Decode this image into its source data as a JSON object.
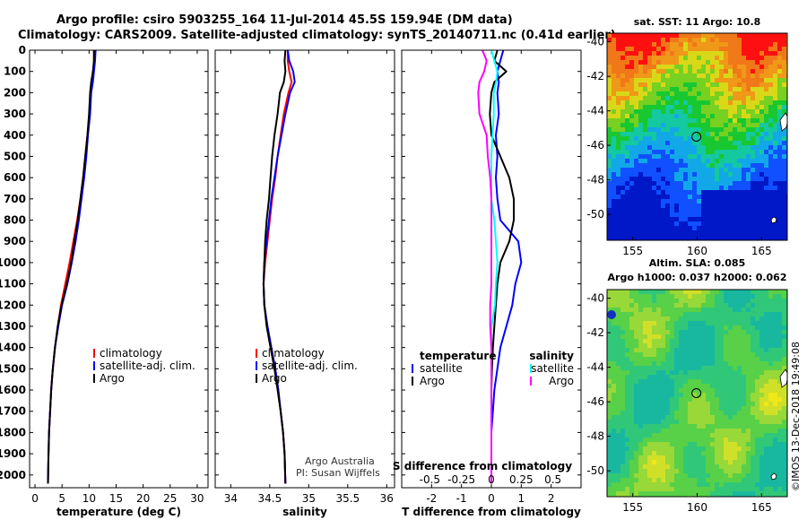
{
  "header": {
    "title_line1": "Argo profile: csiro 5903255_164 11-Jul-2014 45.5S 159.94E (DM data)",
    "title_line2": "Climatology: CARS2009. Satellite-adjusted climatology: synTS_20140711.nc (0.41d earlier)"
  },
  "credit": "Argo Australia",
  "pi": "PI: Susan Wijffels",
  "timestamp": "©IMOS 13-Dec-2018 19:49:08",
  "colors": {
    "climatology": "#ff0000",
    "satellite": "#0000ff",
    "argo": "#000000",
    "sat_salinity": "#00ffff",
    "argo_salinity": "#ff00ff"
  },
  "chart_data": [
    {
      "type": "line",
      "id": "temperature",
      "xlabel": "temperature (deg C)",
      "xlim": [
        -1,
        32
      ],
      "xticks": [
        0,
        5,
        10,
        15,
        20,
        25,
        30
      ],
      "ylim": [
        0,
        2060
      ],
      "yticks": [
        0,
        100,
        200,
        300,
        400,
        500,
        600,
        700,
        800,
        900,
        1000,
        1100,
        1200,
        1300,
        1400,
        1500,
        1600,
        1700,
        1800,
        1900,
        2000
      ],
      "legend": [
        "climatology",
        "satellite-adj. clim.",
        "Argo"
      ],
      "series": [
        {
          "name": "climatology",
          "color": "#ff0000",
          "x": [
            10.9,
            10.9,
            10.8,
            10.6,
            10.3,
            10.1,
            9.7,
            9.3,
            8.9,
            8.4,
            7.8,
            7.1,
            6.4,
            5.6,
            4.8,
            4.2,
            3.7,
            3.3,
            3.0,
            2.8,
            2.6,
            2.5,
            2.4
          ],
          "y": [
            0,
            50,
            100,
            150,
            200,
            300,
            400,
            500,
            600,
            700,
            800,
            900,
            1000,
            1100,
            1200,
            1300,
            1400,
            1500,
            1600,
            1700,
            1800,
            1900,
            2040
          ]
        },
        {
          "name": "satellite-adj. clim.",
          "color": "#0000ff",
          "x": [
            11.2,
            11.1,
            10.9,
            10.7,
            10.4,
            10.2,
            9.8,
            9.5,
            9.1,
            8.6,
            8.1,
            7.5,
            6.8,
            6.0,
            5.0,
            4.3,
            3.7,
            3.3,
            3.0,
            2.8,
            2.6,
            2.5,
            2.4
          ],
          "y": [
            0,
            50,
            100,
            150,
            200,
            300,
            400,
            500,
            600,
            700,
            800,
            900,
            1000,
            1100,
            1200,
            1300,
            1400,
            1500,
            1600,
            1700,
            1800,
            1900,
            2040
          ]
        },
        {
          "name": "Argo",
          "color": "#000000",
          "x": [
            10.9,
            10.9,
            10.7,
            10.4,
            10.2,
            10.0,
            9.7,
            9.3,
            8.9,
            8.4,
            7.9,
            7.3,
            6.7,
            5.9,
            4.9,
            4.2,
            3.7,
            3.3,
            3.0,
            2.8,
            2.6,
            2.5,
            2.4
          ],
          "y": [
            0,
            50,
            100,
            150,
            200,
            300,
            400,
            500,
            600,
            700,
            800,
            900,
            1000,
            1100,
            1200,
            1300,
            1400,
            1500,
            1600,
            1700,
            1800,
            1900,
            2040
          ]
        }
      ]
    },
    {
      "type": "line",
      "id": "salinity",
      "xlabel": "salinity",
      "xlim": [
        33.8,
        36.1
      ],
      "xticks": [
        34,
        34.5,
        35,
        35.5,
        36
      ],
      "ylim": [
        0,
        2060
      ],
      "legend": [
        "climatology",
        "satellite-adj. clim.",
        "Argo"
      ],
      "series": [
        {
          "name": "climatology",
          "color": "#ff0000",
          "x": [
            34.73,
            34.73,
            34.75,
            34.78,
            34.74,
            34.68,
            34.64,
            34.6,
            34.57,
            34.53,
            34.5,
            34.47,
            34.44,
            34.42,
            34.43,
            34.47,
            34.52,
            34.57,
            34.61,
            34.64,
            34.67,
            34.69,
            34.7
          ],
          "y": [
            0,
            50,
            100,
            150,
            200,
            300,
            400,
            500,
            600,
            700,
            800,
            900,
            1000,
            1100,
            1200,
            1300,
            1400,
            1500,
            1600,
            1700,
            1800,
            1900,
            2040
          ]
        },
        {
          "name": "satellite-adj. clim.",
          "color": "#0000ff",
          "x": [
            34.73,
            34.75,
            34.8,
            34.82,
            34.76,
            34.7,
            34.65,
            34.6,
            34.56,
            34.52,
            34.49,
            34.46,
            34.43,
            34.42,
            34.43,
            34.47,
            34.52,
            34.57,
            34.61,
            34.64,
            34.67,
            34.69,
            34.7
          ],
          "y": [
            0,
            50,
            100,
            150,
            200,
            300,
            400,
            500,
            600,
            700,
            800,
            900,
            1000,
            1100,
            1200,
            1300,
            1400,
            1500,
            1600,
            1700,
            1800,
            1900,
            2040
          ]
        },
        {
          "name": "Argo",
          "color": "#000000",
          "x": [
            34.7,
            34.69,
            34.7,
            34.68,
            34.63,
            34.6,
            34.56,
            34.53,
            34.51,
            34.49,
            34.46,
            34.44,
            34.43,
            34.42,
            34.43,
            34.46,
            34.51,
            34.56,
            34.6,
            34.64,
            34.67,
            34.69,
            34.7
          ],
          "y": [
            0,
            50,
            100,
            150,
            200,
            300,
            400,
            500,
            600,
            700,
            800,
            900,
            1000,
            1100,
            1200,
            1300,
            1400,
            1500,
            1600,
            1700,
            1800,
            1900,
            2040
          ]
        }
      ]
    },
    {
      "type": "line",
      "id": "difference",
      "xlabel": "T difference from climatology",
      "xlabel2": "S difference from climatology",
      "xlim": [
        -3,
        3
      ],
      "xticks": [
        -2,
        -1,
        0,
        1,
        2
      ],
      "xticks_labels_T": [
        "-2",
        "-1",
        "0",
        "1",
        "2"
      ],
      "xticks_s_labels": [
        "-0.5",
        "-0.25",
        "0",
        "0.25",
        "0.5"
      ],
      "xticks_s_pos": [
        -2,
        -1,
        0,
        1,
        2
      ],
      "ylim": [
        0,
        2060
      ],
      "legend_left_title": "temperature",
      "legend_right_title": "salinity",
      "legend_left": [
        "satellite",
        "Argo"
      ],
      "legend_right": [
        "satellite",
        "Argo"
      ],
      "series": [
        {
          "name": "T satellite",
          "color": "#0000ff",
          "x": [
            0.4,
            0.3,
            0.2,
            0.25,
            0.2,
            0.25,
            0.15,
            0.2,
            0.15,
            0.2,
            0.3,
            0.9,
            1.0,
            0.8,
            0.7,
            0.5,
            0.3,
            0.2,
            0.1,
            0.05,
            0.0,
            0.0,
            0.0
          ],
          "y": [
            0,
            50,
            100,
            150,
            200,
            300,
            400,
            500,
            600,
            700,
            800,
            900,
            1000,
            1100,
            1200,
            1300,
            1400,
            1500,
            1600,
            1700,
            1800,
            1900,
            2040
          ]
        },
        {
          "name": "T Argo",
          "color": "#000000",
          "x": [
            0.2,
            0.1,
            0.5,
            0.1,
            0.0,
            -0.05,
            0.0,
            0.3,
            0.6,
            0.75,
            0.75,
            0.6,
            0.3,
            0.2,
            0.15,
            0.1,
            0.05,
            0.02,
            0.0,
            0.0,
            0.0,
            0.0,
            0.0
          ],
          "y": [
            0,
            50,
            100,
            150,
            200,
            300,
            400,
            500,
            600,
            700,
            800,
            900,
            1000,
            1100,
            1200,
            1300,
            1400,
            1500,
            1600,
            1700,
            1800,
            1900,
            2040
          ]
        },
        {
          "name": "S satellite",
          "color": "#00ffff",
          "x": [
            0.0,
            0.1,
            0.2,
            0.16,
            0.08,
            0.08,
            0.04,
            0.0,
            0.0,
            0.0,
            0.1,
            0.15,
            0.2,
            0.15,
            0.12,
            0.0,
            0.0,
            0.0,
            0.0,
            0.0,
            0.0,
            0.0,
            0.0
          ],
          "y": [
            0,
            50,
            100,
            150,
            200,
            300,
            400,
            500,
            600,
            700,
            800,
            900,
            1000,
            1100,
            1200,
            1300,
            1400,
            1500,
            1600,
            1700,
            1800,
            1900,
            2040
          ]
        },
        {
          "name": "S Argo",
          "color": "#ff00ff",
          "x": [
            -0.3,
            -0.16,
            -0.24,
            -0.4,
            -0.44,
            -0.4,
            -0.16,
            -0.12,
            -0.04,
            0.0,
            0.0,
            0.0,
            0.0,
            0.0,
            -0.04,
            -0.04,
            0.0,
            0.0,
            0.0,
            0.0,
            0.0,
            0.0,
            0.0
          ],
          "y": [
            0,
            50,
            100,
            150,
            200,
            300,
            400,
            500,
            600,
            700,
            800,
            900,
            1000,
            1100,
            1200,
            1300,
            1400,
            1500,
            1600,
            1700,
            1800,
            1900,
            2040
          ]
        }
      ]
    },
    {
      "type": "heatmap",
      "id": "sst_map",
      "title": "sat. SST: 11 Argo: 10.8",
      "xlim": [
        153,
        167
      ],
      "ylim": [
        -51.5,
        -39.5
      ],
      "xticks": [
        155,
        160,
        165
      ],
      "yticks": [
        -40,
        -42,
        -44,
        -46,
        -48,
        -50
      ],
      "marker": {
        "lon": 159.94,
        "lat": -45.5
      }
    },
    {
      "type": "heatmap",
      "id": "sla_map",
      "title": "Altim. SLA: 0.085",
      "subtitle": "Argo h1000: 0.037 h2000: 0.062",
      "xlim": [
        153,
        167
      ],
      "ylim": [
        -51.5,
        -39.5
      ],
      "xticks": [
        155,
        160,
        165
      ],
      "yticks": [
        -40,
        -42,
        -44,
        -46,
        -48,
        -50
      ],
      "marker": {
        "lon": 159.94,
        "lat": -45.5
      }
    }
  ]
}
